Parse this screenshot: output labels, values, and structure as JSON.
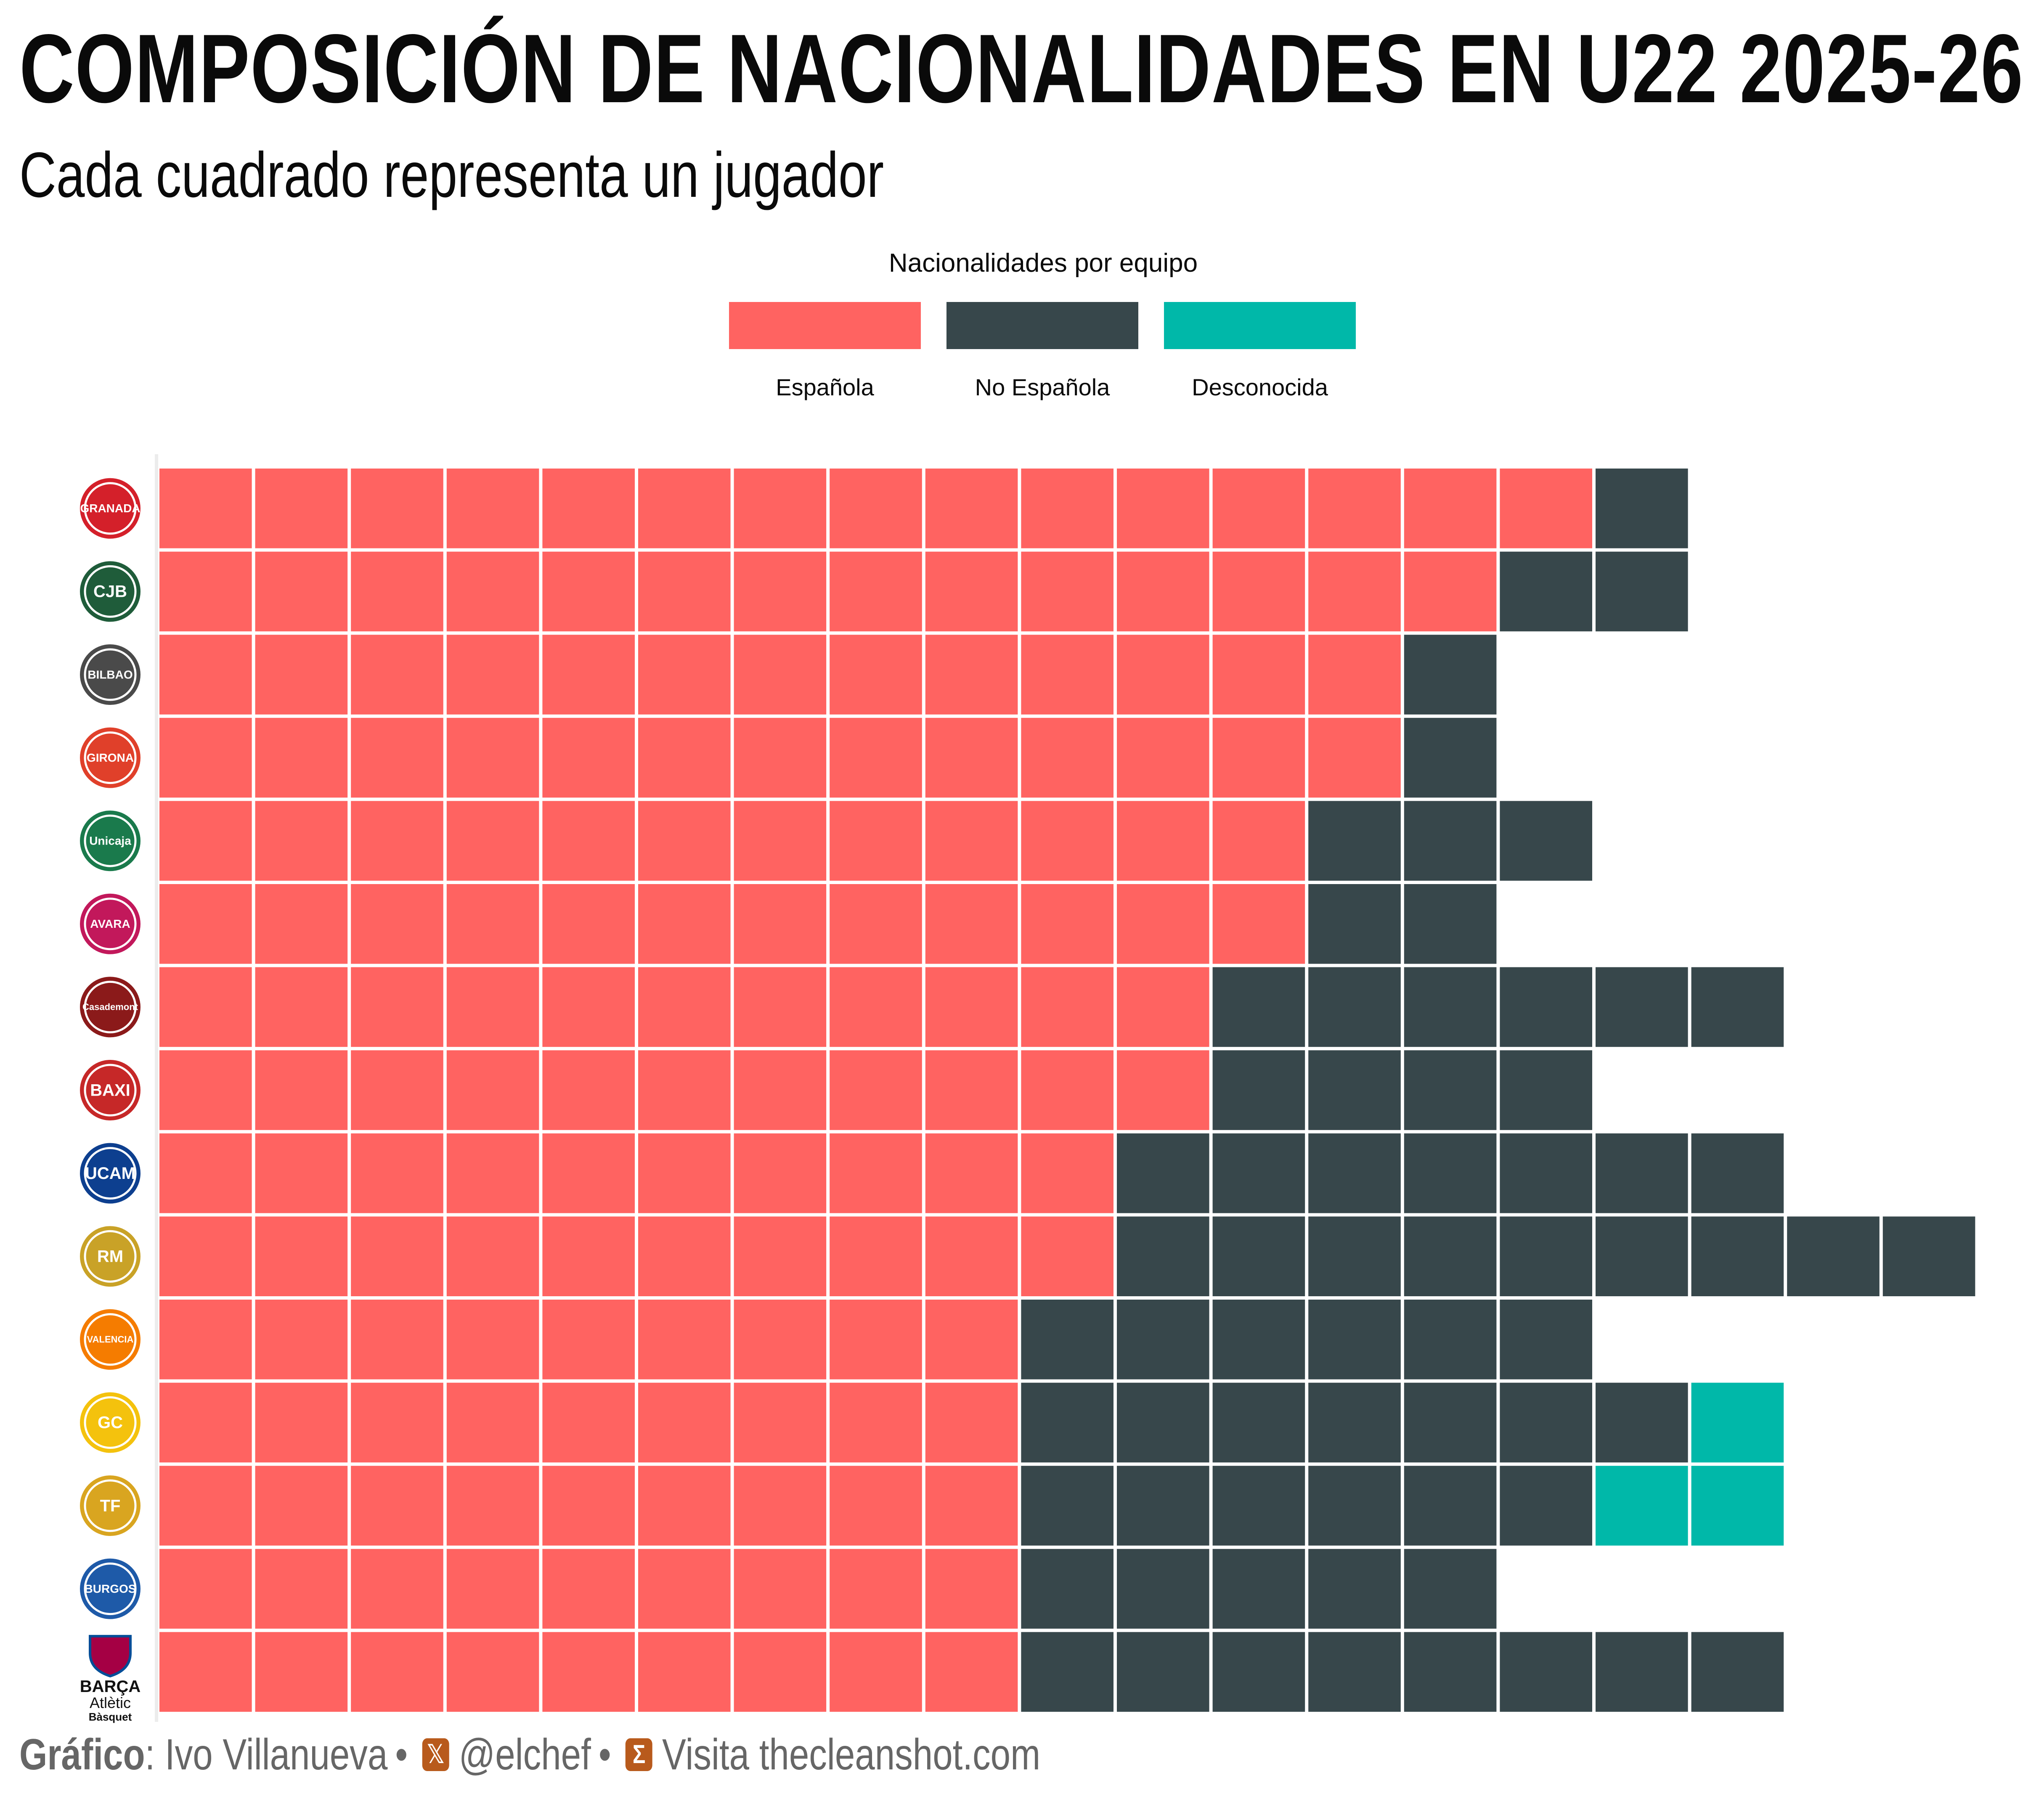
{
  "title": "COMPOSICIÓN DE NACIONALIDADES EN U22 2025-26",
  "subtitle": "Cada cuadrado representa un jugador",
  "legend": {
    "title": "Nacionalidades por equipo",
    "items": [
      {
        "label": "Española",
        "color": "#ff6361"
      },
      {
        "label": "No Española",
        "color": "#37474b"
      },
      {
        "label": "Desconocida",
        "color": "#00b8a9"
      }
    ]
  },
  "chart_data": {
    "type": "waffle",
    "title": "COMPOSICIÓN DE NACIONALIDADES EN U22 2025-26",
    "subtitle": "Cada cuadrado representa un jugador",
    "categories": [
      "Española",
      "No Española",
      "Desconocida"
    ],
    "teams": [
      {
        "logo": "Covirán Granada",
        "logo_text": "GRANADA",
        "logo_color": "#d4202a",
        "espanola": 15,
        "no_espanola": 1,
        "desconocida": 0
      },
      {
        "logo": "Joventut Badalona",
        "logo_text": "CJB",
        "logo_color": "#1f5c3a",
        "espanola": 14,
        "no_espanola": 2,
        "desconocida": 0
      },
      {
        "logo": "Surne Bilbao Basket",
        "logo_text": "BILBAO",
        "logo_color": "#4a4a4a",
        "espanola": 13,
        "no_espanola": 1,
        "desconocida": 0
      },
      {
        "logo": "Bàsquet Girona",
        "logo_text": "GIRONA",
        "logo_color": "#e0402a",
        "espanola": 13,
        "no_espanola": 1,
        "desconocida": 0
      },
      {
        "logo": "Unicaja",
        "logo_text": "Unicaja",
        "logo_color": "#1a7a4c",
        "espanola": 12,
        "no_espanola": 3,
        "desconocida": 0
      },
      {
        "logo": "Morabanc Andorra",
        "logo_text": "AVARA",
        "logo_color": "#c2185b",
        "espanola": 12,
        "no_espanola": 2,
        "desconocida": 0
      },
      {
        "logo": "Casademont Zaragoza",
        "logo_text": "Casademont",
        "logo_color": "#8b1a1a",
        "espanola": 11,
        "no_espanola": 6,
        "desconocida": 0
      },
      {
        "logo": "BAXI Manresa",
        "logo_text": "BAXI",
        "logo_color": "#c62828",
        "espanola": 11,
        "no_espanola": 4,
        "desconocida": 0
      },
      {
        "logo": "UCAM Murcia",
        "logo_text": "UCAM",
        "logo_color": "#0d3f8f",
        "espanola": 10,
        "no_espanola": 7,
        "desconocida": 0
      },
      {
        "logo": "Real Madrid",
        "logo_text": "RM",
        "logo_color": "#c9a227",
        "espanola": 10,
        "no_espanola": 9,
        "desconocida": 0
      },
      {
        "logo": "Valencia Basket",
        "logo_text": "VALENCIA",
        "logo_color": "#f57c00",
        "espanola": 9,
        "no_espanola": 6,
        "desconocida": 0
      },
      {
        "logo": "Dreamland Gran Canaria",
        "logo_text": "GC",
        "logo_color": "#f4c20d",
        "espanola": 9,
        "no_espanola": 7,
        "desconocida": 1
      },
      {
        "logo": "La Laguna Tenerife",
        "logo_text": "TF",
        "logo_color": "#d9a520",
        "espanola": 9,
        "no_espanola": 6,
        "desconocida": 2
      },
      {
        "logo": "San Pablo Burgos",
        "logo_text": "BURGOS",
        "logo_color": "#1e5aa8",
        "espanola": 9,
        "no_espanola": 5,
        "desconocida": 0
      },
      {
        "logo": "Barça Atlètic Bàsquet",
        "logo_text": "BARÇA",
        "logo_color": "#a50044",
        "espanola": 9,
        "no_espanola": 8,
        "desconocida": 0
      }
    ]
  },
  "barca_logo": {
    "line1": "BARÇA",
    "line2": "Atlètic",
    "line3": "Bàsquet"
  },
  "footer": {
    "grafico_label": "Gráfico",
    "author": ": Ivo Villanueva",
    "bullet": "•",
    "x_icon": "𝕏",
    "handle": "@elchef",
    "site_icon": "Σ",
    "site": "Visita thecleanshot.com"
  }
}
